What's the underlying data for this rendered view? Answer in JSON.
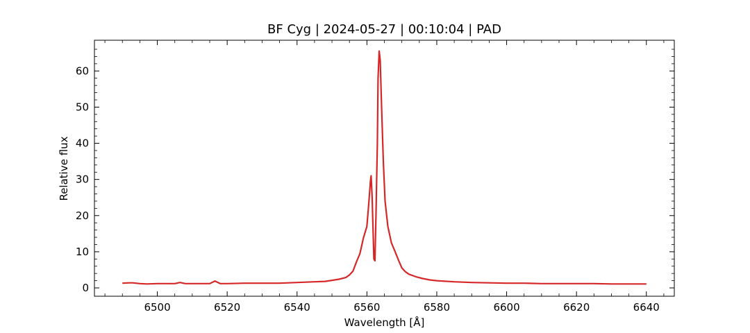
{
  "chart_data": {
    "type": "line",
    "title": "BF Cyg | 2024-05-27 | 00:10:04 | PAD",
    "xlabel": "Wavelength [Å]",
    "ylabel": "Relative flux",
    "xlim": [
      6482,
      6648
    ],
    "ylim": [
      -2.3,
      68.5
    ],
    "xticks": [
      6500,
      6520,
      6540,
      6560,
      6580,
      6600,
      6620,
      6640
    ],
    "yticks": [
      0,
      10,
      20,
      30,
      40,
      50,
      60
    ],
    "grid": false,
    "legend": "none",
    "series": [
      {
        "color": "#d62728",
        "x": [
          6490,
          6492,
          6493,
          6495,
          6497,
          6500,
          6503,
          6505,
          6506.5,
          6508,
          6510,
          6513,
          6515,
          6516.5,
          6518,
          6520,
          6525,
          6530,
          6535,
          6540,
          6545,
          6548,
          6550,
          6552,
          6554,
          6555,
          6556,
          6557,
          6558,
          6559,
          6560,
          6560.5,
          6561,
          6561.2,
          6561.5,
          6562,
          6562.3,
          6562.6,
          6563,
          6563.2,
          6563.5,
          6563.8,
          6564.2,
          6564.7,
          6565.2,
          6566,
          6567,
          6568,
          6569,
          6570,
          6571,
          6572,
          6574,
          6576,
          6578,
          6580,
          6585,
          6590,
          6595,
          6600,
          6605,
          6610,
          6615,
          6620,
          6625,
          6630,
          6635,
          6640
        ],
        "y": [
          1.3,
          1.4,
          1.4,
          1.2,
          1.1,
          1.2,
          1.2,
          1.2,
          1.5,
          1.2,
          1.2,
          1.2,
          1.2,
          1.9,
          1.2,
          1.2,
          1.3,
          1.3,
          1.3,
          1.5,
          1.7,
          1.8,
          2.1,
          2.4,
          2.9,
          3.6,
          4.6,
          7.2,
          9.5,
          13.8,
          17.0,
          23.0,
          29.5,
          31.0,
          25.0,
          8.0,
          7.5,
          20.0,
          40.0,
          58.0,
          65.5,
          63.0,
          50.0,
          35.0,
          24.0,
          17.0,
          12.5,
          10.2,
          7.8,
          5.5,
          4.5,
          3.8,
          3.1,
          2.6,
          2.2,
          2.0,
          1.7,
          1.5,
          1.4,
          1.3,
          1.3,
          1.2,
          1.2,
          1.2,
          1.2,
          1.1,
          1.1,
          1.1
        ]
      }
    ]
  }
}
